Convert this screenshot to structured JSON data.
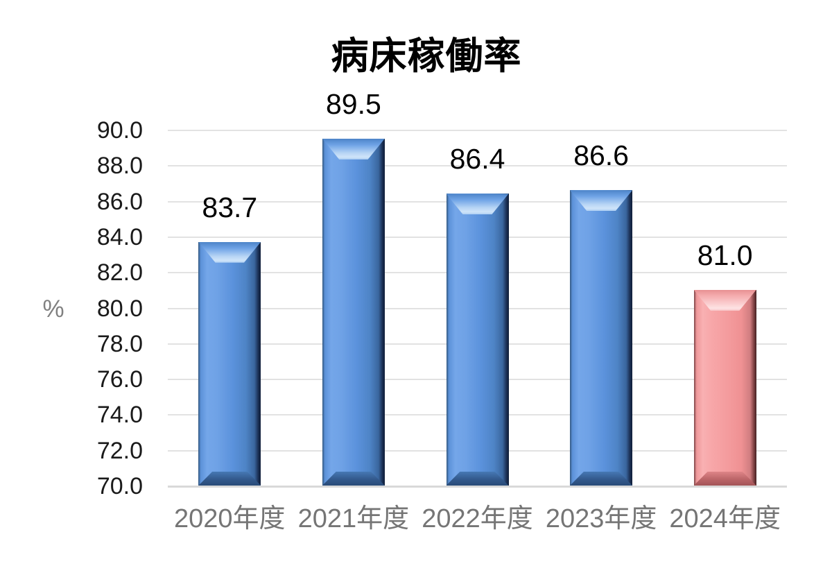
{
  "chart_data": {
    "type": "bar",
    "title": "病床稼働率",
    "ylabel": "%",
    "xlabel": "",
    "categories": [
      "2020年度",
      "2021年度",
      "2022年度",
      "2023年度",
      "2024年度"
    ],
    "values": [
      83.7,
      89.5,
      86.4,
      86.6,
      81.0
    ],
    "data_labels": [
      "83.7",
      "89.5",
      "86.4",
      "86.6",
      "81.0"
    ],
    "ylim": [
      70.0,
      90.0
    ],
    "ytick_step": 2.0,
    "yticks": [
      "90.0",
      "88.0",
      "86.0",
      "84.0",
      "82.0",
      "80.0",
      "78.0",
      "76.0",
      "74.0",
      "72.0",
      "70.0"
    ],
    "grid": true,
    "legend_position": "none",
    "bar_styles": [
      "blue",
      "blue",
      "blue",
      "blue",
      "pink"
    ],
    "colors": {
      "blue_bar": "#5b92dc",
      "pink_bar": "#f49b9d",
      "gridline": "#e2e2e2",
      "baseline": "#d9d9d9",
      "ytick_label": "#1a1a1a",
      "category_label": "#757575",
      "y_unit_label": "#808080",
      "title": "#000000",
      "data_label": "#000000",
      "background": "#ffffff"
    }
  }
}
